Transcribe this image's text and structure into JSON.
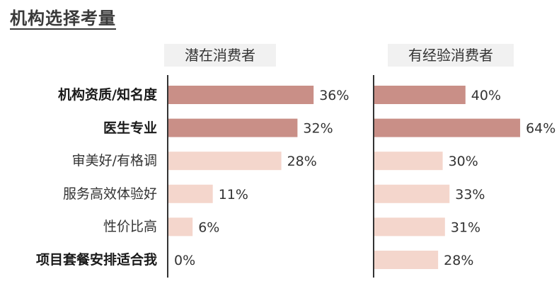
{
  "page": {
    "title": "机构选择考量"
  },
  "headers": {
    "left": "潜在消费者",
    "right": "有经验消费者"
  },
  "colors": {
    "bold_bar": "#c98f87",
    "light_bar": "#f4d6cc",
    "axis": "#333333",
    "text": "#333333"
  },
  "chart_data": {
    "type": "bar",
    "orientation": "horizontal",
    "categories": [
      "机构资质/知名度",
      "医生专业",
      "审美好/有格调",
      "服务高效体验好",
      "性价比高",
      "项目套餐安排适合我"
    ],
    "highlighted_categories": [
      "机构资质/知名度",
      "医生专业",
      "项目套餐安排适合我"
    ],
    "series": [
      {
        "name": "潜在消费者",
        "values": [
          36,
          32,
          28,
          11,
          6,
          0
        ],
        "labels": [
          "36%",
          "32%",
          "28%",
          "11%",
          "6%",
          "0%"
        ],
        "emphasis": [
          true,
          true,
          false,
          false,
          false,
          false
        ]
      },
      {
        "name": "有经验消费者",
        "values": [
          40,
          64,
          30,
          33,
          31,
          28
        ],
        "labels": [
          "40%",
          "64%",
          "30%",
          "33%",
          "31%",
          "28%"
        ],
        "emphasis": [
          true,
          true,
          false,
          false,
          false,
          false
        ]
      }
    ],
    "unit": "%",
    "grid": false,
    "legend": "none"
  }
}
